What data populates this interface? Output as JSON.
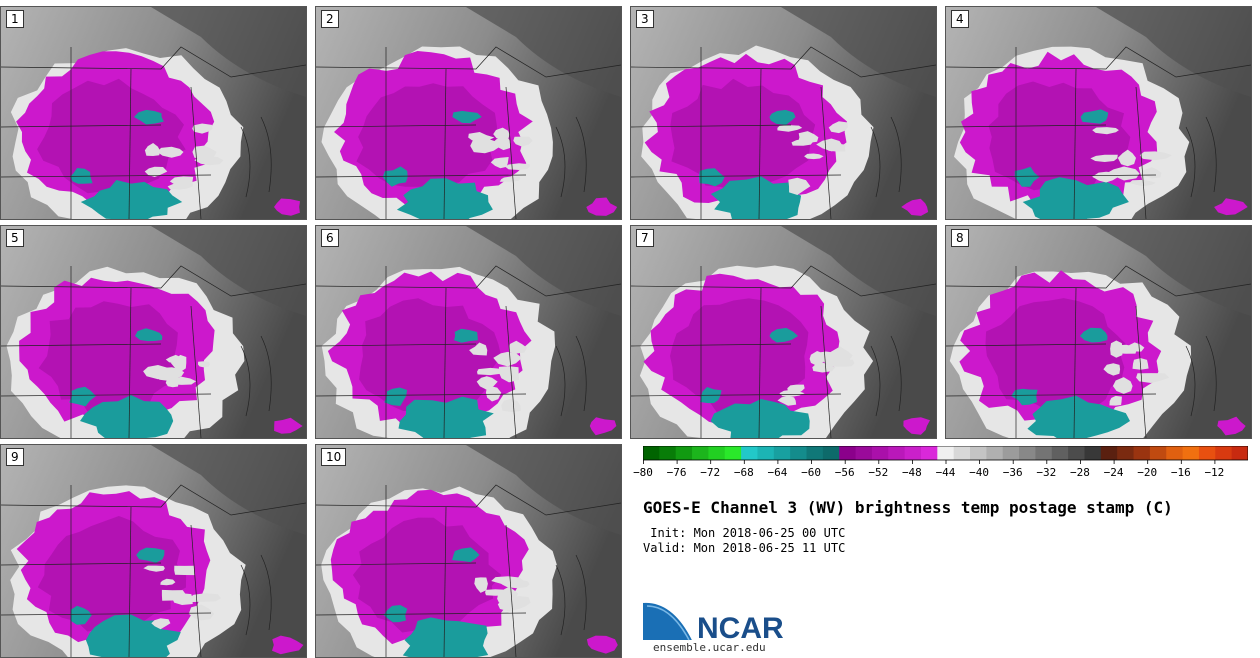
{
  "panels": [
    "1",
    "2",
    "3",
    "4",
    "5",
    "6",
    "7",
    "8",
    "9",
    "10"
  ],
  "colorbar": {
    "colors": [
      "#006400",
      "#087d08",
      "#119a11",
      "#1cb51c",
      "#22d022",
      "#2ae82a",
      "#22c8c8",
      "#1cb4b4",
      "#18a0a0",
      "#148c8c",
      "#107878",
      "#0d6a6a",
      "#8b008b",
      "#9a0a9a",
      "#aa10aa",
      "#ba18ba",
      "#ca20ca",
      "#da28da",
      "#f0f0f0",
      "#d8d8d8",
      "#c4c4c4",
      "#b0b0b0",
      "#9c9c9c",
      "#888888",
      "#747474",
      "#606060",
      "#4c4c4c",
      "#383838",
      "#5a2010",
      "#7a2a10",
      "#9a3410",
      "#c04a10",
      "#e06010",
      "#f07010",
      "#e85010",
      "#d83a10",
      "#c82a10"
    ],
    "labels": [
      "-80",
      "-76",
      "-72",
      "-68",
      "-64",
      "-60",
      "-56",
      "-52",
      "-48",
      "-44",
      "-40",
      "-36",
      "-32",
      "-28",
      "-24",
      "-20",
      "-16",
      "-12"
    ]
  },
  "title": "GOES-E Channel 3 (WV) brightness temp postage stamp (C)",
  "init_line": " Init: Mon 2018-06-25 00 UTC",
  "valid_line": "Valid: Mon 2018-06-25 11 UTC",
  "logo": {
    "text": "NCAR",
    "url": "ensemble.ucar.edu"
  }
}
